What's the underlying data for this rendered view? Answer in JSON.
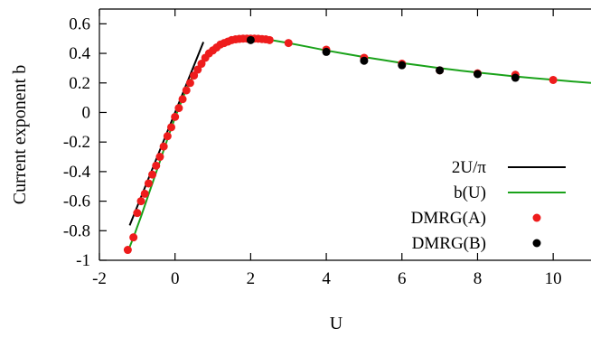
{
  "chart_data": {
    "type": "line",
    "xlabel": "U",
    "ylabel": "Current exponent b",
    "xlim": [
      -2,
      11
    ],
    "ylim": [
      -1,
      0.7
    ],
    "xticks": [
      -2,
      0,
      2,
      4,
      6,
      8,
      10
    ],
    "xtick_labels": [
      "-2",
      "0",
      "2",
      "4",
      "6",
      "8",
      "10"
    ],
    "yticks": [
      -1,
      -0.8,
      -0.6,
      -0.4,
      -0.2,
      0,
      0.2,
      0.4,
      0.6
    ],
    "ytick_labels": [
      "-1",
      "-0.8",
      "-0.6",
      "-0.4",
      "-0.2",
      "0",
      "0.2",
      "0.4",
      "0.6"
    ],
    "grid": false,
    "legend_position": "bottom-right",
    "series": [
      {
        "name": "2U/π",
        "kind": "line",
        "color": "#000000",
        "x": [
          -1.2,
          0.75
        ],
        "y": [
          -0.764,
          0.477
        ]
      },
      {
        "name": "b(U)",
        "kind": "line",
        "color": "#1aa21a",
        "x": [
          -1.2,
          -1.1,
          -1.0,
          -0.9,
          -0.8,
          -0.7,
          -0.6,
          -0.5,
          -0.4,
          -0.3,
          -0.2,
          -0.1,
          0.0,
          0.1,
          0.2,
          0.3,
          0.4,
          0.5,
          0.6,
          0.7,
          0.8,
          0.9,
          1.0,
          1.1,
          1.2,
          1.3,
          1.4,
          1.5,
          1.6,
          1.7,
          1.8,
          1.9,
          2.0,
          2.2,
          2.5,
          3.0,
          3.5,
          4.0,
          4.5,
          5.0,
          5.5,
          6.0,
          6.5,
          7.0,
          7.5,
          8.0,
          8.5,
          9.0,
          9.5,
          10.0,
          10.5,
          11.0
        ],
        "y": [
          -0.91,
          -0.845,
          -0.775,
          -0.705,
          -0.63,
          -0.555,
          -0.48,
          -0.405,
          -0.33,
          -0.255,
          -0.18,
          -0.105,
          -0.035,
          0.03,
          0.095,
          0.155,
          0.21,
          0.26,
          0.305,
          0.345,
          0.38,
          0.41,
          0.435,
          0.455,
          0.47,
          0.48,
          0.488,
          0.493,
          0.496,
          0.498,
          0.499,
          0.5,
          0.5,
          0.498,
          0.492,
          0.47,
          0.445,
          0.42,
          0.397,
          0.375,
          0.355,
          0.335,
          0.318,
          0.3,
          0.285,
          0.27,
          0.257,
          0.244,
          0.232,
          0.221,
          0.21,
          0.2
        ]
      },
      {
        "name": "DMRG(A)",
        "kind": "scatter",
        "color": "#ee1c1c",
        "x": [
          -1.25,
          -1.1,
          -1.0,
          -0.9,
          -0.8,
          -0.7,
          -0.6,
          -0.5,
          -0.4,
          -0.3,
          -0.2,
          -0.1,
          0.0,
          0.1,
          0.2,
          0.3,
          0.4,
          0.5,
          0.6,
          0.7,
          0.8,
          0.9,
          1.0,
          1.1,
          1.2,
          1.3,
          1.4,
          1.5,
          1.6,
          1.7,
          1.8,
          1.9,
          2.0,
          2.1,
          2.2,
          2.3,
          2.4,
          2.5,
          3.0,
          4.0,
          5.0,
          6.0,
          7.0,
          8.0,
          9.0,
          10.0
        ],
        "y": [
          -0.93,
          -0.845,
          -0.68,
          -0.6,
          -0.55,
          -0.48,
          -0.42,
          -0.36,
          -0.3,
          -0.23,
          -0.16,
          -0.1,
          -0.03,
          0.03,
          0.09,
          0.15,
          0.2,
          0.25,
          0.29,
          0.33,
          0.37,
          0.4,
          0.42,
          0.44,
          0.46,
          0.47,
          0.48,
          0.49,
          0.495,
          0.498,
          0.5,
          0.5,
          0.5,
          0.5,
          0.499,
          0.497,
          0.495,
          0.49,
          0.47,
          0.425,
          0.37,
          0.33,
          0.285,
          0.265,
          0.255,
          0.22
        ]
      },
      {
        "name": "DMRG(B)",
        "kind": "scatter",
        "color": "#000000",
        "x": [
          2.0,
          4.0,
          5.0,
          6.0,
          7.0,
          8.0,
          9.0
        ],
        "y": [
          0.49,
          0.41,
          0.35,
          0.32,
          0.285,
          0.26,
          0.235
        ]
      }
    ]
  }
}
